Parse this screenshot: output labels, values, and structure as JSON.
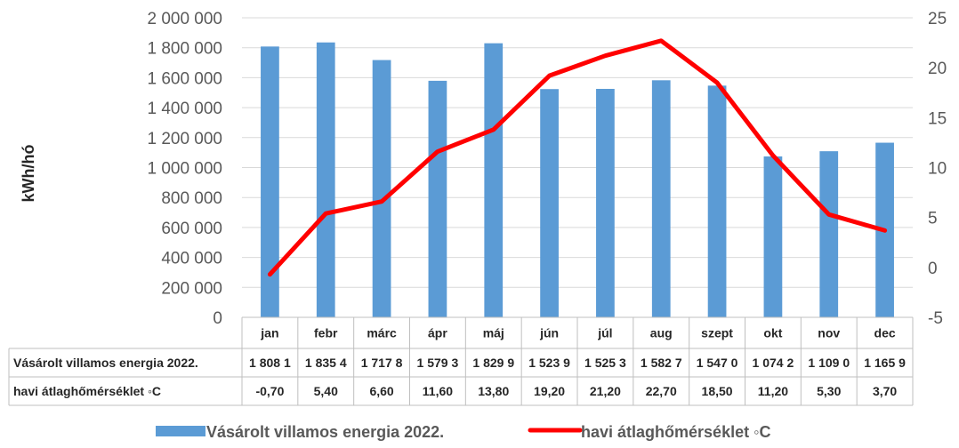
{
  "chart_data": {
    "type": "bar",
    "categories": [
      "jan",
      "febr",
      "márc",
      "ápr",
      "máj",
      "jún",
      "júl",
      "aug",
      "szept",
      "okt",
      "nov",
      "dec"
    ],
    "series": [
      {
        "name": "Vásárolt villamos energia 2022.",
        "type": "bar",
        "axis": "left",
        "color": "#5B9BD5",
        "values": [
          1808100,
          1835400,
          1717800,
          1579300,
          1829900,
          1523900,
          1525300,
          1582700,
          1547000,
          1074200,
          1109000,
          1165900
        ],
        "table_text": [
          "1 808 1",
          "1 835 4",
          "1 717 8",
          "1 579 3",
          "1 829 9",
          "1 523 9",
          "1 525 3",
          "1 582 7",
          "1 547 0",
          "1 074 2",
          "1 109 0",
          "1 165 9"
        ]
      },
      {
        "name": "havi átlaghőmérséklet ◦C",
        "type": "line",
        "axis": "right",
        "color": "#FF0000",
        "values": [
          -0.7,
          5.4,
          6.6,
          11.6,
          13.8,
          19.2,
          21.2,
          22.7,
          18.5,
          11.2,
          5.3,
          3.7
        ],
        "table_text": [
          "-0,70",
          "5,40",
          "6,60",
          "11,60",
          "13,80",
          "19,20",
          "21,20",
          "22,70",
          "18,50",
          "11,20",
          "5,30",
          "3,70"
        ]
      }
    ],
    "ylabel": "kWh/hó",
    "ylim": [
      0,
      2000000
    ],
    "y_ticks": [
      "0",
      "200 000",
      "400 000",
      "600 000",
      "800 000",
      "1 000 000",
      "1 200 000",
      "1 400 000",
      "1 600 000",
      "1 800 000",
      "2 000 000"
    ],
    "y2lim": [
      -5,
      25
    ],
    "y2_ticks": [
      "-5",
      "0",
      "5",
      "10",
      "15",
      "20",
      "25"
    ],
    "grid": true,
    "data_table": true,
    "legend_position": "bottom"
  }
}
